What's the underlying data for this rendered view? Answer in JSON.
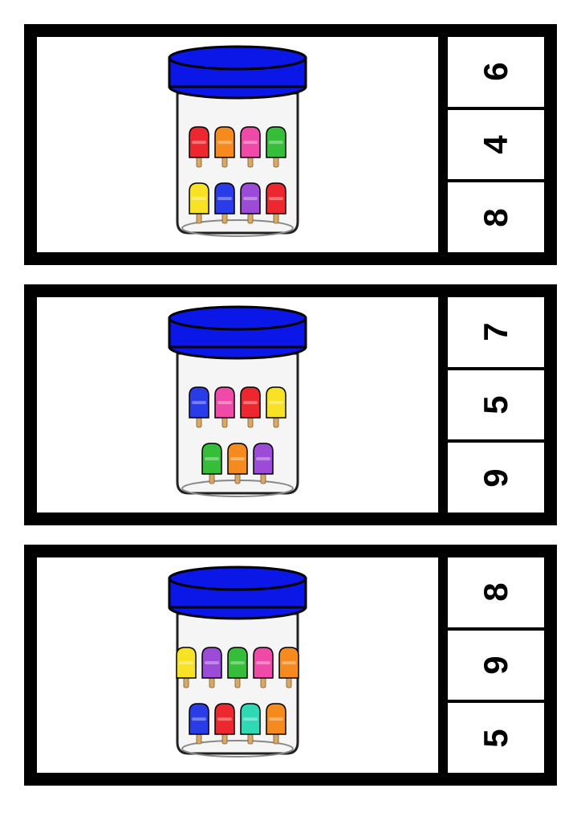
{
  "colors": {
    "lid": "#0a17e6",
    "lid_dark": "#000000",
    "jar_fill": "#f5f5f6",
    "jar_stroke": "#222222",
    "stick": "#d9a864",
    "red": "#ec272f",
    "orange": "#f58a1f",
    "pink": "#f04aa8",
    "green": "#36bd3a",
    "yellow": "#f7e225",
    "blue": "#2a3be8",
    "purple": "#9b4bd8",
    "cyan": "#2fd9b8",
    "darkpink": "#e83a8e"
  },
  "cards": [
    {
      "choices": [
        "6",
        "4",
        "8"
      ],
      "rows": [
        [
          "red",
          "orange",
          "pink",
          "green"
        ],
        [
          "yellow",
          "blue",
          "purple",
          "red"
        ]
      ]
    },
    {
      "choices": [
        "7",
        "5",
        "9"
      ],
      "rows": [
        [
          "blue",
          "pink",
          "red",
          "yellow"
        ],
        [
          "green",
          "orange",
          "purple"
        ]
      ]
    },
    {
      "choices": [
        "8",
        "9",
        "5"
      ],
      "rows": [
        [
          "yellow",
          "purple",
          "green",
          "pink",
          "orange"
        ],
        [
          "blue",
          "red",
          "cyan",
          "orange"
        ]
      ]
    }
  ]
}
